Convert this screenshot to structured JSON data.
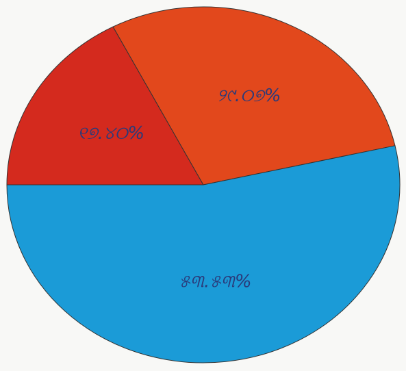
{
  "chart_data": {
    "type": "pie",
    "categories": [
      "red",
      "orange",
      "blue"
    ],
    "values": [
      17.4,
      29.07,
      53.53
    ],
    "value_labels": [
      "୧୭.୪୦%",
      "୨୯.୦୭%",
      "୫୩.୫୩%"
    ],
    "colors": [
      "#d42a1e",
      "#e2481c",
      "#1b9bd7"
    ]
  }
}
